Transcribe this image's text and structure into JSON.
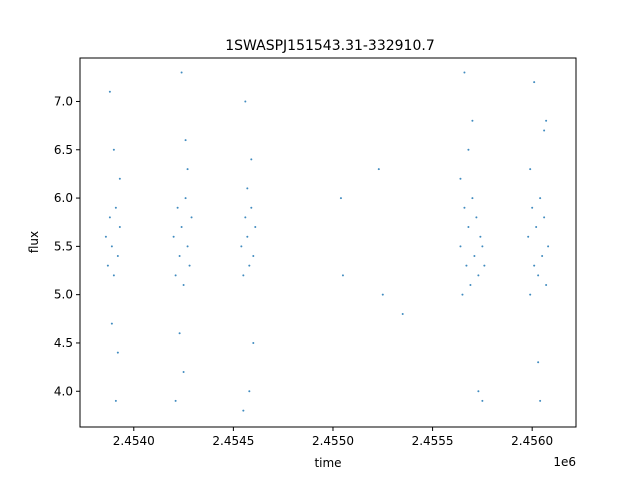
{
  "chart_data": {
    "type": "scatter",
    "title": "1SWASPJ151543.31-332910.7",
    "xlabel": "time",
    "ylabel": "flux",
    "x_offset_label": "1e6",
    "xlim": [
      2.45373,
      2.45622
    ],
    "ylim": [
      3.63,
      7.45
    ],
    "x_ticks": [
      {
        "value": 2.454,
        "label": "2.4540"
      },
      {
        "value": 2.4545,
        "label": "2.4545"
      },
      {
        "value": 2.455,
        "label": "2.4550"
      },
      {
        "value": 2.4555,
        "label": "2.4555"
      },
      {
        "value": 2.456,
        "label": "2.4560"
      }
    ],
    "y_ticks": [
      {
        "value": 4.0,
        "label": "4.0"
      },
      {
        "value": 4.5,
        "label": "4.5"
      },
      {
        "value": 5.0,
        "label": "5.0"
      },
      {
        "value": 5.5,
        "label": "5.5"
      },
      {
        "value": 6.0,
        "label": "6.0"
      },
      {
        "value": 6.5,
        "label": "6.5"
      },
      {
        "value": 7.0,
        "label": "7.0"
      }
    ],
    "grid": false,
    "marker_color": "#1f77b4",
    "series": [
      {
        "x": [
          2.45386,
          2.45387,
          2.45388,
          2.45389,
          2.4539,
          2.45391,
          2.45392,
          2.45393,
          2.45388,
          2.4539,
          2.45392,
          2.45391,
          2.45389,
          2.45393,
          2.4542,
          2.45421,
          2.45422,
          2.45423,
          2.45424,
          2.45425,
          2.45426,
          2.45427,
          2.45428,
          2.45429,
          2.45424,
          2.45426,
          2.45425,
          2.45423,
          2.45427,
          2.45421,
          2.45454,
          2.45455,
          2.45456,
          2.45457,
          2.45458,
          2.45459,
          2.4546,
          2.45461,
          2.45456,
          2.45458,
          2.4546,
          2.45459,
          2.45455,
          2.45457,
          2.45504,
          2.45505,
          2.45523,
          2.45525,
          2.45535,
          2.45564,
          2.45565,
          2.45566,
          2.45567,
          2.45568,
          2.45569,
          2.4557,
          2.45571,
          2.45572,
          2.45573,
          2.45574,
          2.45575,
          2.45576,
          2.45566,
          2.4557,
          2.45573,
          2.45568,
          2.45575,
          2.45564,
          2.45598,
          2.45599,
          2.456,
          2.45601,
          2.45602,
          2.45603,
          2.45604,
          2.45605,
          2.45606,
          2.45607,
          2.45608,
          2.45601,
          2.45604,
          2.45606,
          2.45603,
          2.45599,
          2.45607
        ],
        "y": [
          5.6,
          5.3,
          5.8,
          5.5,
          5.2,
          5.9,
          5.4,
          5.7,
          7.1,
          6.5,
          4.4,
          3.9,
          4.7,
          6.2,
          5.6,
          5.2,
          5.9,
          5.4,
          5.7,
          5.1,
          6.0,
          5.5,
          5.3,
          5.8,
          7.3,
          6.6,
          4.2,
          4.6,
          6.3,
          3.9,
          5.5,
          5.2,
          5.8,
          5.6,
          5.3,
          5.9,
          5.4,
          5.7,
          7.0,
          4.0,
          4.5,
          6.4,
          3.8,
          6.1,
          6.0,
          5.2,
          6.3,
          5.0,
          4.8,
          5.5,
          5.0,
          5.9,
          5.3,
          5.7,
          5.1,
          6.0,
          5.4,
          5.8,
          5.2,
          5.6,
          5.5,
          5.3,
          7.3,
          6.8,
          4.0,
          6.5,
          3.9,
          6.2,
          5.6,
          5.0,
          5.9,
          5.3,
          5.7,
          5.2,
          6.0,
          5.4,
          5.8,
          5.1,
          5.5,
          7.2,
          3.9,
          6.7,
          4.3,
          6.3,
          6.8
        ]
      }
    ]
  }
}
